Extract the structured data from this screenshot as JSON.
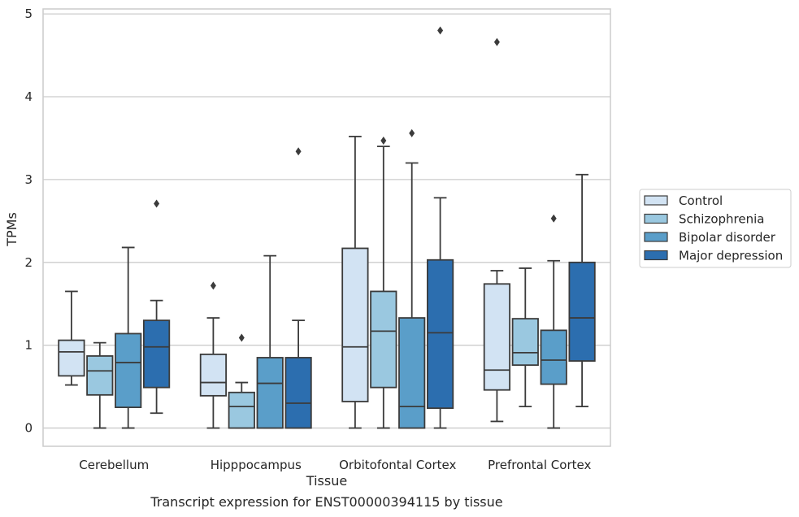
{
  "caption": "Transcript expression for ENST00000394115 by tissue",
  "chart_data": {
    "type": "boxplot",
    "xlabel": "Tissue",
    "ylabel": "TPMs",
    "ylim": [
      -0.22,
      5.06
    ],
    "yticks": [
      0,
      1,
      2,
      3,
      4,
      5
    ],
    "grid": true,
    "legend_position": "right",
    "categories": [
      "Cerebellum",
      "Hipppocampus",
      "Orbitofontal Cortex",
      "Prefrontal Cortex"
    ],
    "series": [
      {
        "name": "Control",
        "color": "#d2e3f3",
        "boxes": [
          {
            "whisker_low": 0.52,
            "q1": 0.63,
            "median": 0.92,
            "q3": 1.06,
            "whisker_high": 1.65,
            "outliers": []
          },
          {
            "whisker_low": 0.0,
            "q1": 0.39,
            "median": 0.55,
            "q3": 0.89,
            "whisker_high": 1.33,
            "outliers": [
              1.72
            ]
          },
          {
            "whisker_low": 0.0,
            "q1": 0.32,
            "median": 0.98,
            "q3": 2.17,
            "whisker_high": 3.52,
            "outliers": []
          },
          {
            "whisker_low": 0.08,
            "q1": 0.46,
            "median": 0.7,
            "q3": 1.74,
            "whisker_high": 1.9,
            "outliers": [
              4.66
            ]
          }
        ]
      },
      {
        "name": "Schizophrenia",
        "color": "#9ac8e0",
        "boxes": [
          {
            "whisker_low": 0.0,
            "q1": 0.4,
            "median": 0.69,
            "q3": 0.87,
            "whisker_high": 1.03,
            "outliers": []
          },
          {
            "whisker_low": 0.0,
            "q1": 0.0,
            "median": 0.26,
            "q3": 0.43,
            "whisker_high": 0.55,
            "outliers": [
              1.09
            ]
          },
          {
            "whisker_low": 0.0,
            "q1": 0.49,
            "median": 1.17,
            "q3": 1.65,
            "whisker_high": 3.4,
            "outliers": [
              3.47
            ]
          },
          {
            "whisker_low": 0.26,
            "q1": 0.76,
            "median": 0.91,
            "q3": 1.32,
            "whisker_high": 1.93,
            "outliers": []
          }
        ]
      },
      {
        "name": "Bipolar disorder",
        "color": "#5a9ec9",
        "boxes": [
          {
            "whisker_low": 0.0,
            "q1": 0.25,
            "median": 0.79,
            "q3": 1.14,
            "whisker_high": 2.18,
            "outliers": []
          },
          {
            "whisker_low": 0.0,
            "q1": 0.0,
            "median": 0.54,
            "q3": 0.85,
            "whisker_high": 2.08,
            "outliers": []
          },
          {
            "whisker_low": 0.0,
            "q1": 0.0,
            "median": 0.26,
            "q3": 1.33,
            "whisker_high": 3.2,
            "outliers": [
              3.56
            ]
          },
          {
            "whisker_low": 0.0,
            "q1": 0.53,
            "median": 0.82,
            "q3": 1.18,
            "whisker_high": 2.02,
            "outliers": [
              2.53
            ]
          }
        ]
      },
      {
        "name": "Major depression",
        "color": "#2c6eaf",
        "boxes": [
          {
            "whisker_low": 0.18,
            "q1": 0.49,
            "median": 0.98,
            "q3": 1.3,
            "whisker_high": 1.54,
            "outliers": [
              2.71
            ]
          },
          {
            "whisker_low": 0.0,
            "q1": 0.0,
            "median": 0.3,
            "q3": 0.85,
            "whisker_high": 1.3,
            "outliers": [
              3.34
            ]
          },
          {
            "whisker_low": 0.0,
            "q1": 0.24,
            "median": 1.15,
            "q3": 2.03,
            "whisker_high": 2.78,
            "outliers": [
              4.8
            ]
          },
          {
            "whisker_low": 0.26,
            "q1": 0.81,
            "median": 1.33,
            "q3": 2.0,
            "whisker_high": 3.06,
            "outliers": []
          }
        ]
      }
    ]
  }
}
